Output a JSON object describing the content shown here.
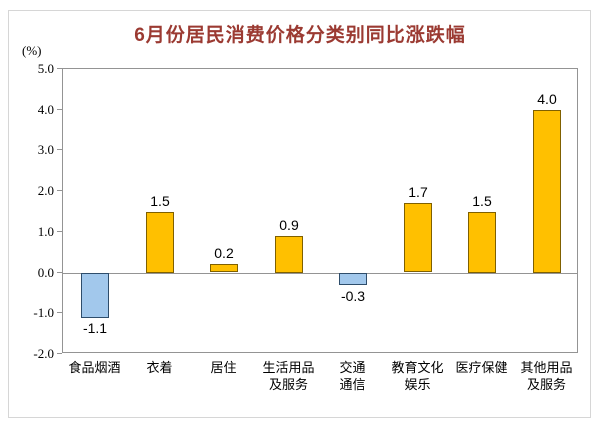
{
  "colors": {
    "title": "#9b3a32",
    "positive_fill": "#ffc000",
    "positive_border": "#7f6000",
    "negative_fill": "#a2c8ec",
    "negative_border": "#2e4d6b",
    "axis": "#949494",
    "text": "#000000"
  },
  "chart_data": {
    "type": "bar",
    "title": "6月份居民消费价格分类别同比涨跌幅",
    "ylabel": "(%)",
    "xlabel": "",
    "categories": [
      "食品烟酒",
      "衣着",
      "居住",
      "生活用品\n及服务",
      "交通\n通信",
      "教育文化\n娱乐",
      "医疗保健",
      "其他用品\n及服务"
    ],
    "values": [
      -1.1,
      1.5,
      0.2,
      0.9,
      -0.3,
      1.7,
      1.5,
      4.0
    ],
    "value_labels": [
      "-1.1",
      "1.5",
      "0.2",
      "0.9",
      "-0.3",
      "1.7",
      "1.5",
      "4.0"
    ],
    "ylim": [
      -2.0,
      5.0
    ],
    "ytick_labels": [
      "5.0",
      "4.0",
      "3.0",
      "2.0",
      "1.0",
      "0.0",
      "-1.0",
      "-2.0"
    ],
    "grid": false,
    "legend": false
  }
}
